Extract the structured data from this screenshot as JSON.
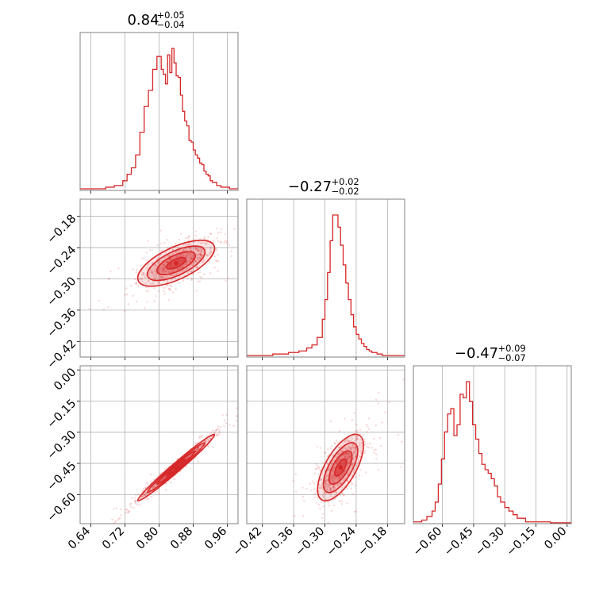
{
  "chart_data": {
    "type": "corner",
    "color": "#d62728",
    "parameters": [
      {
        "median": "0.84",
        "plus": "+0.05",
        "minus": "−0.04",
        "range": [
          0.615,
          0.985
        ],
        "ticks": [
          0.64,
          0.72,
          0.8,
          0.88,
          0.96
        ],
        "tick_labels": [
          "0.64",
          "0.72",
          "0.80",
          "0.88",
          "0.96"
        ]
      },
      {
        "median": "−0.27",
        "plus": "+0.02",
        "minus": "−0.02",
        "range": [
          -0.45,
          -0.147
        ],
        "ticks": [
          -0.42,
          -0.36,
          -0.3,
          -0.24,
          -0.18
        ],
        "tick_labels": [
          "−0.42",
          "−0.36",
          "−0.30",
          "−0.24",
          "−0.18"
        ]
      },
      {
        "median": "−0.47",
        "plus": "+0.09",
        "minus": "−0.07",
        "range": [
          -0.74,
          0.02
        ],
        "ticks": [
          -0.6,
          -0.45,
          -0.3,
          -0.15,
          0.0
        ],
        "tick_labels": [
          "−0.60",
          "−0.45",
          "−0.30",
          "−0.15",
          "0.00"
        ]
      }
    ],
    "histograms": [
      {
        "param": 0,
        "bin_edges": [
          0.615,
          0.635,
          0.655,
          0.675,
          0.695,
          0.715,
          0.725,
          0.735,
          0.745,
          0.755,
          0.765,
          0.775,
          0.785,
          0.795,
          0.805,
          0.81,
          0.815,
          0.82,
          0.825,
          0.83,
          0.835,
          0.84,
          0.845,
          0.85,
          0.855,
          0.86,
          0.865,
          0.87,
          0.875,
          0.88,
          0.885,
          0.89,
          0.895,
          0.9,
          0.905,
          0.91,
          0.915,
          0.92,
          0.925,
          0.935,
          0.945,
          0.955,
          0.965,
          0.985
        ],
        "counts": [
          0.01,
          0.01,
          0.01,
          0.02,
          0.03,
          0.06,
          0.1,
          0.14,
          0.22,
          0.36,
          0.52,
          0.62,
          0.75,
          0.83,
          0.75,
          0.72,
          0.66,
          0.84,
          0.73,
          0.88,
          0.79,
          0.71,
          0.7,
          0.59,
          0.49,
          0.43,
          0.4,
          0.31,
          0.3,
          0.25,
          0.22,
          0.2,
          0.17,
          0.16,
          0.12,
          0.1,
          0.09,
          0.06,
          0.05,
          0.03,
          0.02,
          0.02,
          0.01
        ]
      },
      {
        "param": 1,
        "bin_edges": [
          -0.45,
          -0.4,
          -0.37,
          -0.35,
          -0.335,
          -0.325,
          -0.315,
          -0.305,
          -0.3,
          -0.295,
          -0.29,
          -0.285,
          -0.28,
          -0.275,
          -0.27,
          -0.265,
          -0.26,
          -0.255,
          -0.25,
          -0.245,
          -0.24,
          -0.235,
          -0.23,
          -0.225,
          -0.22,
          -0.215,
          -0.21,
          -0.2,
          -0.19,
          -0.147
        ],
        "counts": [
          0.01,
          0.02,
          0.03,
          0.04,
          0.06,
          0.08,
          0.13,
          0.25,
          0.38,
          0.56,
          0.77,
          0.94,
          0.94,
          0.86,
          0.74,
          0.61,
          0.49,
          0.38,
          0.28,
          0.2,
          0.15,
          0.12,
          0.09,
          0.07,
          0.05,
          0.04,
          0.03,
          0.02,
          0.01
        ]
      },
      {
        "param": 2,
        "bin_edges": [
          -0.74,
          -0.7,
          -0.675,
          -0.65,
          -0.635,
          -0.62,
          -0.605,
          -0.59,
          -0.575,
          -0.56,
          -0.545,
          -0.53,
          -0.515,
          -0.5,
          -0.485,
          -0.47,
          -0.455,
          -0.44,
          -0.425,
          -0.41,
          -0.395,
          -0.38,
          -0.365,
          -0.35,
          -0.335,
          -0.32,
          -0.3,
          -0.28,
          -0.26,
          -0.24,
          -0.2,
          -0.16,
          -0.12,
          -0.08,
          0.02
        ],
        "counts": [
          0.01,
          0.02,
          0.04,
          0.07,
          0.12,
          0.22,
          0.36,
          0.51,
          0.61,
          0.64,
          0.49,
          0.55,
          0.72,
          0.7,
          0.79,
          0.68,
          0.55,
          0.47,
          0.39,
          0.33,
          0.3,
          0.28,
          0.25,
          0.21,
          0.15,
          0.12,
          0.09,
          0.07,
          0.05,
          0.03,
          0.01,
          0.01,
          0.01,
          0.005
        ]
      }
    ],
    "densities": [
      {
        "x_param": 0,
        "y_param": 1,
        "mean": [
          0.84,
          -0.27
        ],
        "sd": [
          0.045,
          0.022
        ],
        "corr": 0.65
      },
      {
        "x_param": 0,
        "y_param": 2,
        "mean": [
          0.84,
          -0.47
        ],
        "sd": [
          0.045,
          0.08
        ],
        "corr": 0.985
      },
      {
        "x_param": 1,
        "y_param": 2,
        "mean": [
          -0.27,
          -0.47
        ],
        "sd": [
          0.022,
          0.08
        ],
        "corr": 0.66
      }
    ],
    "contour_levels_sigma": [
      0.5,
      1.0,
      1.5,
      2.0
    ]
  }
}
